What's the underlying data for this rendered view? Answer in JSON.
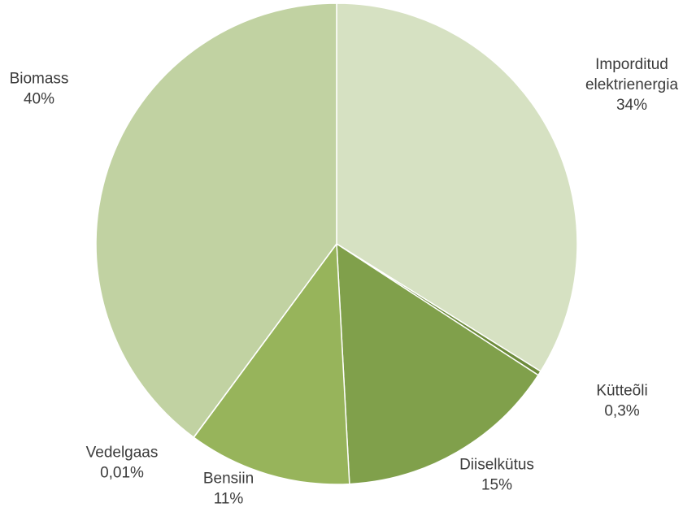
{
  "chart_data": {
    "type": "pie",
    "title": "",
    "slices": [
      {
        "label": "Imporditud elektrienergia",
        "label_lines": [
          "Imporditud",
          "elektrienergia"
        ],
        "value": 34,
        "value_text": "34%",
        "color": "#d6e1c2"
      },
      {
        "label": "Kütteõli",
        "label_lines": [
          "Kütteõli"
        ],
        "value": 0.3,
        "value_text": "0,3%",
        "color": "#6d8b3b"
      },
      {
        "label": "Diiselkütus",
        "label_lines": [
          "Diiselkütus"
        ],
        "value": 15,
        "value_text": "15%",
        "color": "#80a04b"
      },
      {
        "label": "Bensiin",
        "label_lines": [
          "Bensiin"
        ],
        "value": 11,
        "value_text": "11%",
        "color": "#97b45b"
      },
      {
        "label": "Vedelgaas",
        "label_lines": [
          "Vedelgaas"
        ],
        "value": 0.01,
        "value_text": "0,01%",
        "color": "#acc48a"
      },
      {
        "label": "Biomass",
        "label_lines": [
          "Biomass"
        ],
        "value": 40,
        "value_text": "40%",
        "color": "#c1d2a2"
      }
    ],
    "start_angle_deg": 0,
    "direction": "clockwise",
    "legend": "none",
    "data_labels": "outside"
  }
}
